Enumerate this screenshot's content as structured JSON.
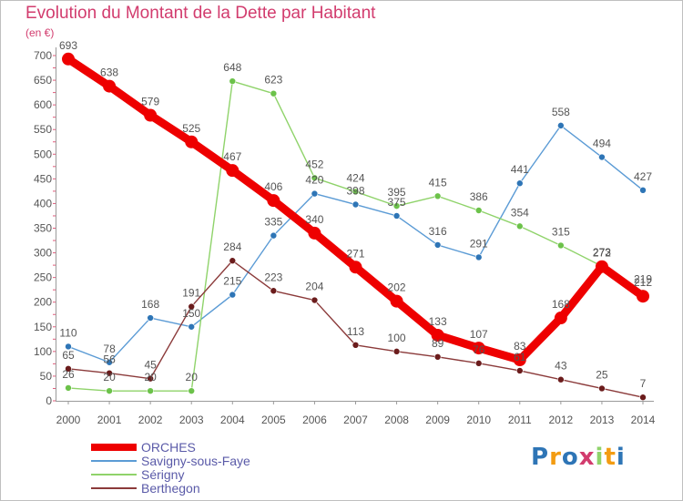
{
  "chart_data": {
    "type": "line",
    "title": "Evolution du Montant de la Dette par Habitant",
    "unit": "(en €)",
    "x": [
      "2000",
      "2001",
      "2002",
      "2003",
      "2004",
      "2005",
      "2006",
      "2007",
      "2008",
      "2009",
      "2010",
      "2011",
      "2012",
      "2013",
      "2014"
    ],
    "ylim": [
      0,
      700
    ],
    "yticks": [
      0,
      50,
      100,
      150,
      200,
      250,
      300,
      350,
      400,
      450,
      500,
      550,
      600,
      650,
      700
    ],
    "grid": false,
    "legend_position": "bottom-left",
    "series": [
      {
        "name": "ORCHES",
        "color": "#ee0000",
        "values": [
          693,
          638,
          579,
          525,
          467,
          406,
          340,
          271,
          202,
          133,
          107,
          83,
          168,
          272,
          212
        ],
        "emphasis": true
      },
      {
        "name": "Savigny-sous-Faye",
        "color": "#5b9bd5",
        "marker": "#2e75b6",
        "values": [
          110,
          78,
          168,
          150,
          215,
          335,
          420,
          398,
          375,
          316,
          291,
          441,
          558,
          494,
          427
        ]
      },
      {
        "name": "Sérigny",
        "color": "#8fd36a",
        "marker": "#6cc24a",
        "values": [
          26,
          20,
          20,
          20,
          648,
          623,
          452,
          424,
          395,
          415,
          386,
          354,
          315,
          273,
          219
        ]
      },
      {
        "name": "Berthegon",
        "color": "#8b3a3a",
        "marker": "#6b1c1c",
        "values": [
          65,
          56,
          45,
          191,
          284,
          223,
          204,
          113,
          100,
          89,
          76,
          61,
          43,
          25,
          7
        ]
      }
    ]
  },
  "logo": {
    "letters": [
      "P",
      "r",
      "o",
      "x",
      "i",
      "t",
      "i"
    ],
    "colors": [
      "#2e75b6",
      "#f39c12",
      "#2e75b6",
      "#d23c6e",
      "#8fd36a",
      "#f39c12",
      "#2e75b6"
    ]
  }
}
